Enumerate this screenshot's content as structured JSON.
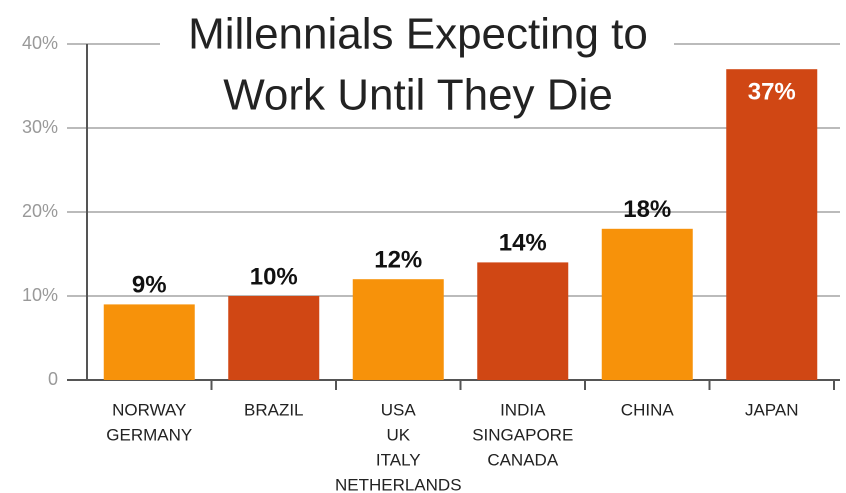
{
  "chart_data": {
    "type": "bar",
    "title": [
      "Millennials Expecting to",
      "Work Until They Die"
    ],
    "categories": [
      [
        "NORWAY",
        "GERMANY"
      ],
      [
        "BRAZIL"
      ],
      [
        "USA",
        "UK",
        "ITALY",
        "NETHERLANDS"
      ],
      [
        "INDIA",
        "SINGAPORE",
        "CANADA"
      ],
      [
        "CHINA"
      ],
      [
        "JAPAN"
      ]
    ],
    "values": [
      9,
      10,
      12,
      14,
      18,
      37
    ],
    "value_labels": [
      "9%",
      "10%",
      "12%",
      "14%",
      "18%",
      "37%"
    ],
    "colors": [
      "#f7920a",
      "#d04714",
      "#f7920a",
      "#d04714",
      "#f7920a",
      "#d04714"
    ],
    "ylim": [
      0,
      40
    ],
    "yticks": [
      0,
      {
        "value": 10,
        "label": "10%"
      },
      {
        "value": 20,
        "label": "20%"
      },
      {
        "value": 30,
        "label": "30%"
      },
      {
        "value": 40,
        "label": "40%"
      }
    ],
    "grid": true
  }
}
